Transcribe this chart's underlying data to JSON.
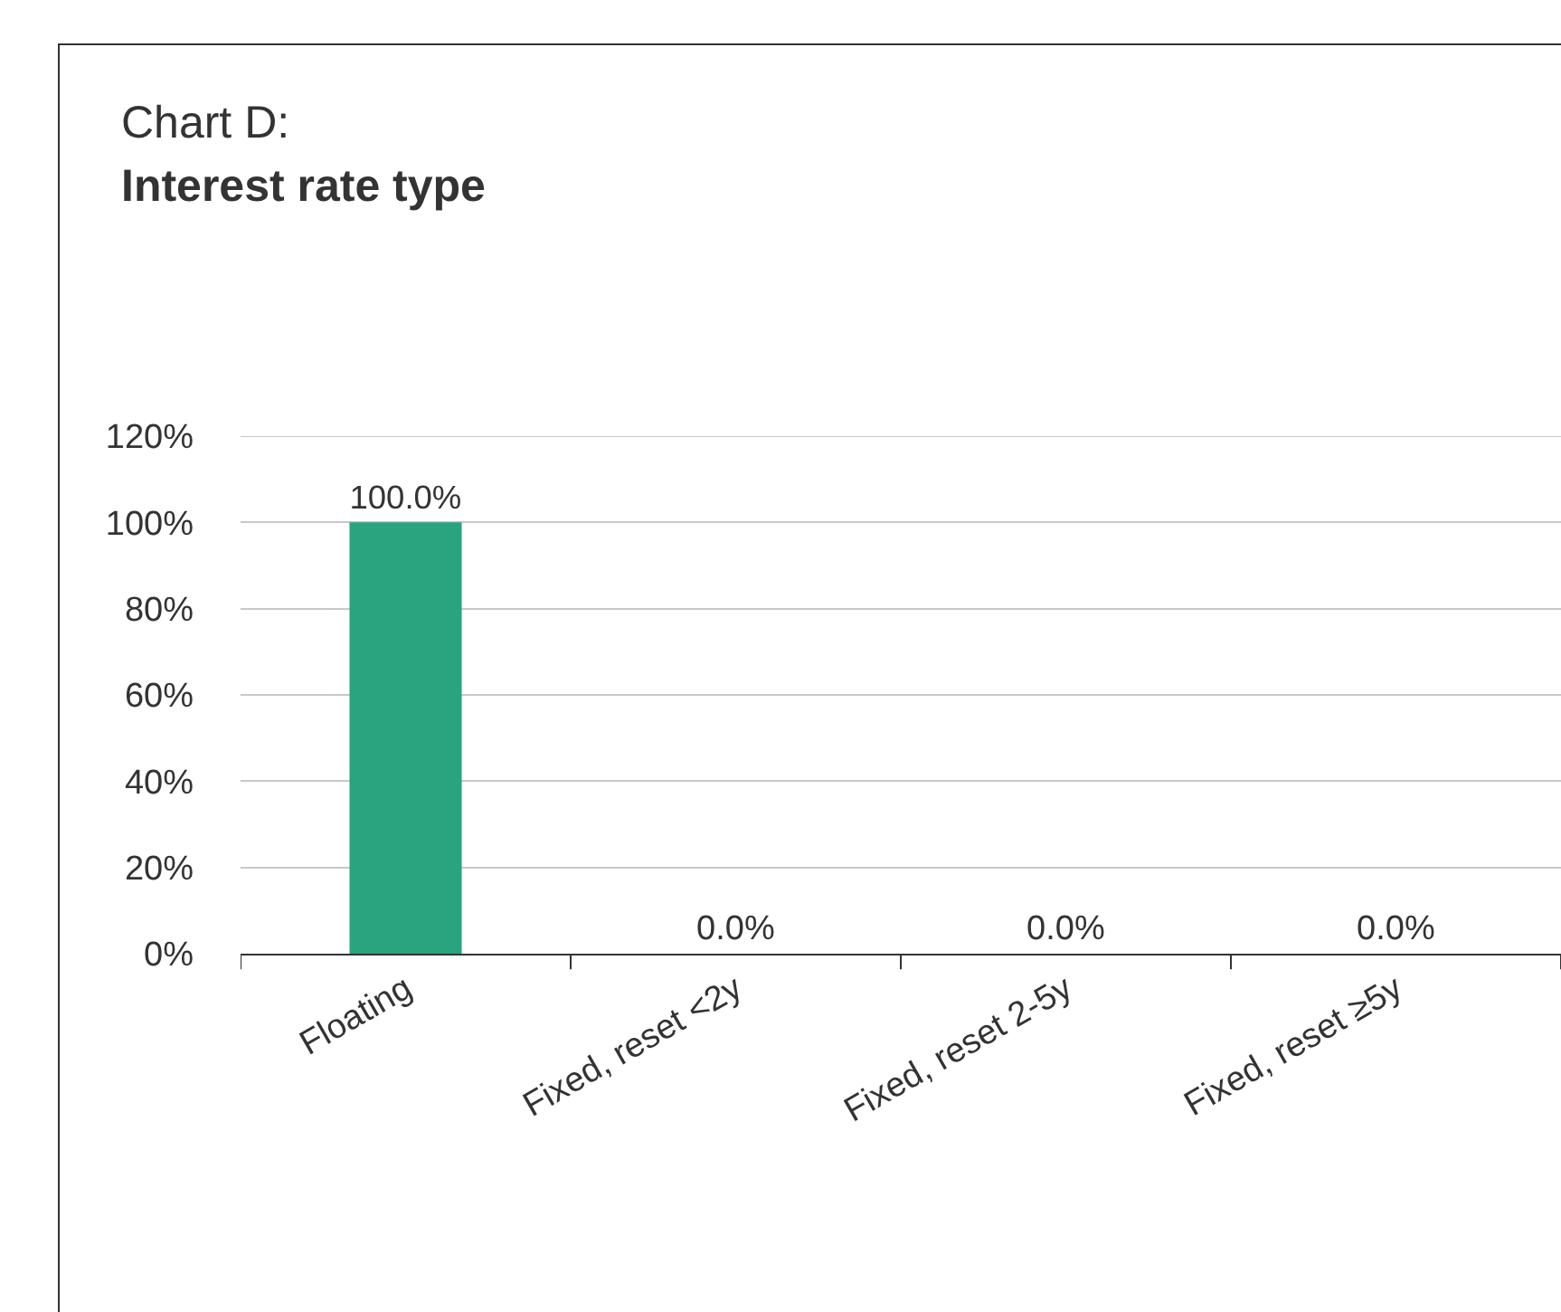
{
  "chart_data": {
    "type": "bar",
    "title": "Chart D:",
    "subtitle": "Interest rate type",
    "categories": [
      "Floating",
      "Fixed, reset <2y",
      "Fixed, reset 2-5y",
      "Fixed, reset ≥5y"
    ],
    "values": [
      100,
      0,
      0,
      0
    ],
    "value_labels": [
      "100.0%",
      "0.0%",
      "0.0%",
      "0.0%"
    ],
    "color": "#2aa37f",
    "ylim": [
      0,
      120
    ],
    "yticks": [
      {
        "value": 0,
        "label": "0%"
      },
      {
        "value": 20,
        "label": "20%"
      },
      {
        "value": 40,
        "label": "40%"
      },
      {
        "value": 60,
        "label": "60%"
      },
      {
        "value": 80,
        "label": "80%"
      },
      {
        "value": 100,
        "label": "100%"
      },
      {
        "value": 120,
        "label": "120%"
      }
    ],
    "grid": "y"
  }
}
